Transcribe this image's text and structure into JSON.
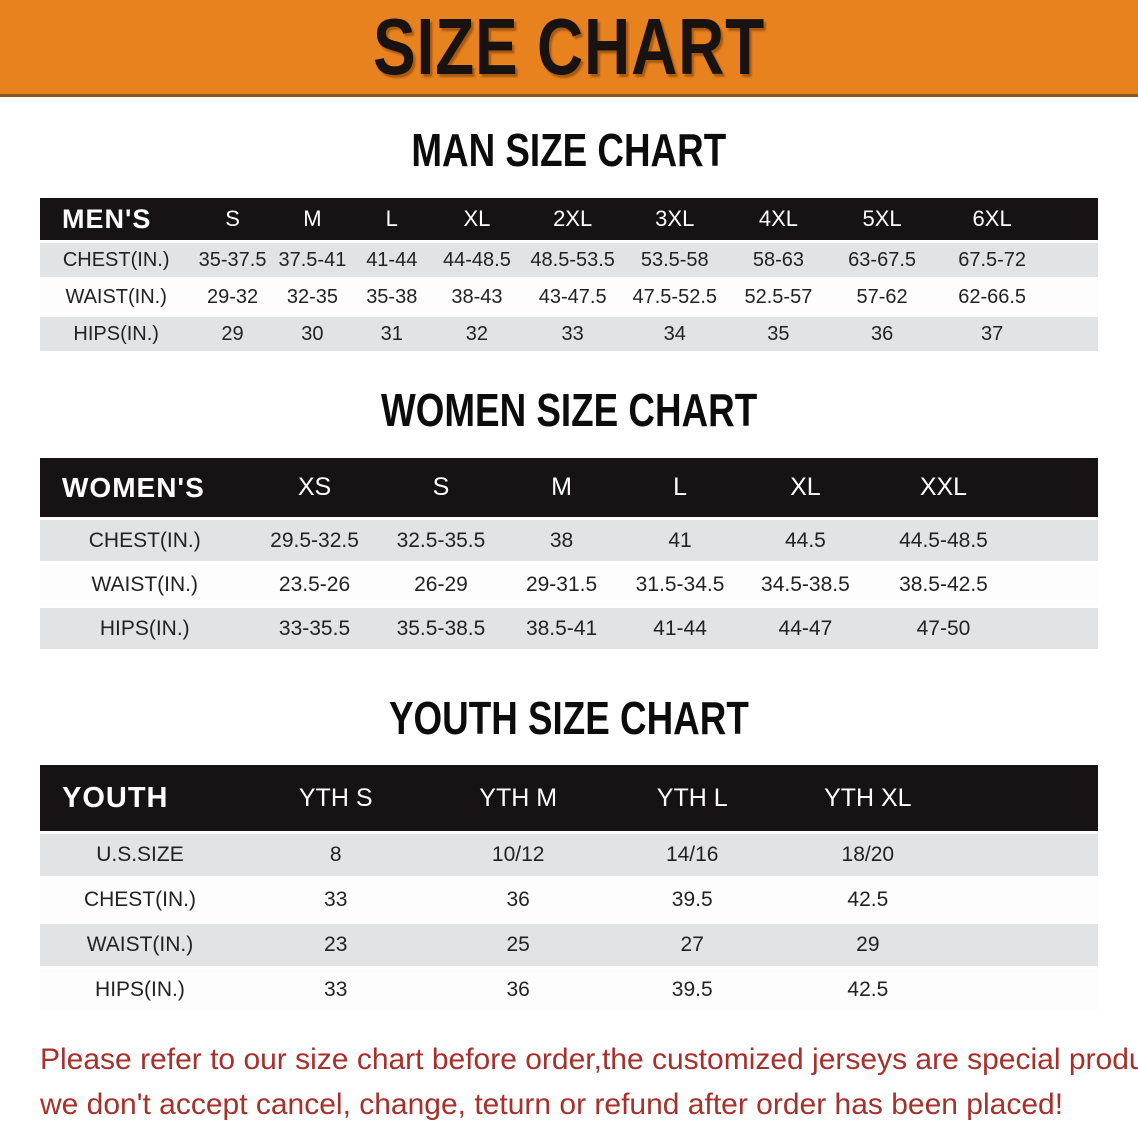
{
  "banner": {
    "title": "SIZE CHART",
    "bg_color": "#E8821F"
  },
  "sections": [
    {
      "heading": "MAN SIZE CHART",
      "corner_label": "MEN'S",
      "columns": [
        "S",
        "M",
        "L",
        "XL",
        "2XL",
        "3XL",
        "4XL",
        "5XL",
        "6XL"
      ],
      "rows": [
        {
          "label": "CHEST(IN.)",
          "values": [
            "35-37.5",
            "37.5-41",
            "41-44",
            "44-48.5",
            "48.5-53.5",
            "53.5-58",
            "58-63",
            "63-67.5",
            "67.5-72"
          ]
        },
        {
          "label": "WAIST(IN.)",
          "values": [
            "29-32",
            "32-35",
            "35-38",
            "38-43",
            "43-47.5",
            "47.5-52.5",
            "52.5-57",
            "57-62",
            "62-66.5"
          ]
        },
        {
          "label": "HIPS(IN.)",
          "values": [
            "29",
            "30",
            "31",
            "32",
            "33",
            "34",
            "35",
            "36",
            "37"
          ]
        }
      ]
    },
    {
      "heading": "WOMEN SIZE CHART",
      "corner_label": "WOMEN'S",
      "columns": [
        "XS",
        "S",
        "M",
        "L",
        "XL",
        "XXL"
      ],
      "rows": [
        {
          "label": "CHEST(IN.)",
          "values": [
            "29.5-32.5",
            "32.5-35.5",
            "38",
            "41",
            "44.5",
            "44.5-48.5"
          ]
        },
        {
          "label": "WAIST(IN.)",
          "values": [
            "23.5-26",
            "26-29",
            "29-31.5",
            "31.5-34.5",
            "34.5-38.5",
            "38.5-42.5"
          ]
        },
        {
          "label": "HIPS(IN.)",
          "values": [
            "33-35.5",
            "35.5-38.5",
            "38.5-41",
            "41-44",
            "44-47",
            "47-50"
          ]
        }
      ]
    },
    {
      "heading": "YOUTH SIZE CHART",
      "corner_label": "YOUTH",
      "columns": [
        "YTH S",
        "YTH M",
        "YTH L",
        "YTH XL"
      ],
      "rows": [
        {
          "label": "U.S.SIZE",
          "values": [
            "8",
            "10/12",
            "14/16",
            "18/20"
          ]
        },
        {
          "label": "CHEST(IN.)",
          "values": [
            "33",
            "36",
            "39.5",
            "42.5"
          ]
        },
        {
          "label": "WAIST(IN.)",
          "values": [
            "23",
            "25",
            "27",
            "29"
          ]
        },
        {
          "label": "HIPS(IN.)",
          "values": [
            "33",
            "36",
            "39.5",
            "42.5"
          ]
        }
      ]
    }
  ],
  "footer": {
    "lines": [
      "Please refer to our size chart before order,the customized jerseys are special products,",
      "we don't accept cancel, change, teturn or refund after order has been placed!"
    ],
    "color": "#A6302C"
  },
  "colors": {
    "banner_orange": "#E8821F",
    "header_band_black": "#171315",
    "stripe_gray": "#e2e3e5",
    "footer_red": "#A6302C"
  }
}
